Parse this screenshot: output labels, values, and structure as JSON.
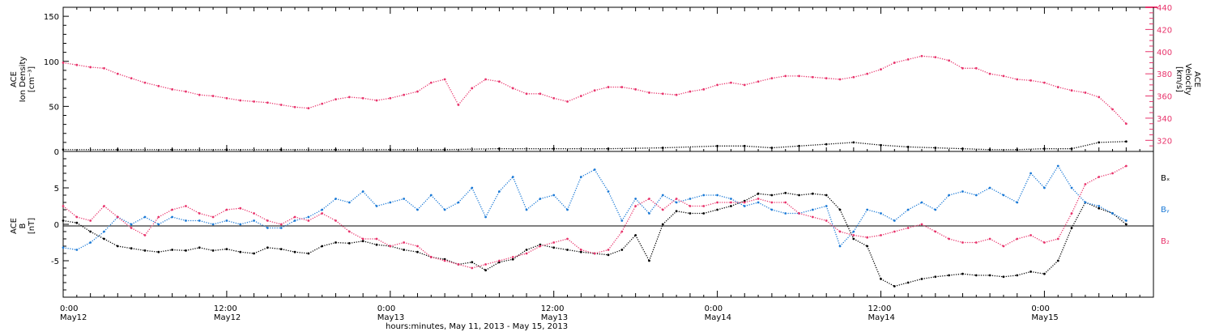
{
  "chart_data": [
    {
      "type": "scatter",
      "panel": "top",
      "ylabel_lines": [
        "ACE",
        "Ion Density",
        "[cm⁻³]"
      ],
      "right_ylabel_lines": [
        "ACE",
        "Velocity",
        "[km/s]"
      ],
      "ylim": [
        0,
        160
      ],
      "yticks": [
        0,
        50,
        100,
        150
      ],
      "ylim_right": [
        310,
        440
      ],
      "yticks_right": [
        320,
        340,
        360,
        380,
        400,
        420,
        440
      ],
      "xlim_hours": [
        0,
        80
      ],
      "series": [
        {
          "axis": "right",
          "color": "#e8336b",
          "x": [
            0,
            1,
            2,
            3,
            4,
            5,
            6,
            7,
            8,
            9,
            10,
            11,
            12,
            13,
            14,
            15,
            16,
            17,
            18,
            19,
            20,
            21,
            22,
            23,
            24,
            25,
            26,
            27,
            28,
            29,
            30,
            31,
            32,
            33,
            34,
            35,
            36,
            37,
            38,
            39,
            40,
            41,
            42,
            43,
            44,
            45,
            46,
            47,
            48,
            49,
            50,
            51,
            52,
            53,
            54,
            55,
            56,
            57,
            58,
            59,
            60,
            61,
            62,
            63,
            64,
            65,
            66,
            67,
            68,
            69,
            70,
            71,
            72,
            73,
            74,
            75,
            76,
            77,
            78
          ],
          "y": [
            390,
            388,
            386,
            385,
            380,
            376,
            372,
            369,
            366,
            364,
            361,
            360,
            358,
            356,
            355,
            354,
            352,
            350,
            349,
            353,
            357,
            359,
            358,
            356,
            358,
            361,
            364,
            372,
            375,
            352,
            367,
            375,
            373,
            367,
            362,
            362,
            358,
            355,
            360,
            365,
            368,
            368,
            366,
            363,
            362,
            361,
            364,
            366,
            370,
            372,
            370,
            373,
            376,
            378,
            378,
            377,
            376,
            375,
            377,
            380,
            384,
            390,
            393,
            396,
            395,
            392,
            385,
            385,
            380,
            378,
            375,
            374,
            372,
            368,
            365,
            363,
            359,
            348,
            335
          ]
        },
        {
          "axis": "left",
          "color": "#000000",
          "x": [
            0,
            4,
            8,
            12,
            16,
            20,
            24,
            28,
            32,
            36,
            40,
            44,
            48,
            50,
            52,
            54,
            56,
            58,
            60,
            62,
            64,
            66,
            68,
            70,
            72,
            74,
            76,
            78
          ],
          "y": [
            2,
            2,
            2,
            2,
            2,
            2,
            2,
            2,
            3,
            3,
            3,
            4,
            6,
            6,
            4,
            6,
            8,
            10,
            7,
            5,
            4,
            3,
            2,
            2,
            3,
            3,
            10,
            11
          ]
        }
      ]
    },
    {
      "type": "scatter",
      "panel": "bottom",
      "ylabel_lines": [
        "ACE",
        "B",
        "[nT]"
      ],
      "ylim": [
        -10,
        10
      ],
      "yticks": [
        -5,
        0,
        5
      ],
      "zero_line": true,
      "xlim_hours": [
        0,
        80
      ],
      "legend": [
        "Bₓ",
        "Bᵧ",
        "B₂"
      ],
      "series": [
        {
          "name": "Bₓ",
          "color": "#000000",
          "x": [
            0,
            1,
            2,
            3,
            4,
            5,
            6,
            7,
            8,
            9,
            10,
            11,
            12,
            13,
            14,
            15,
            16,
            17,
            18,
            19,
            20,
            21,
            22,
            23,
            24,
            25,
            26,
            27,
            28,
            29,
            30,
            31,
            32,
            33,
            34,
            35,
            36,
            37,
            38,
            39,
            40,
            41,
            42,
            43,
            44,
            45,
            46,
            47,
            48,
            49,
            50,
            51,
            52,
            53,
            54,
            55,
            56,
            57,
            58,
            59,
            60,
            61,
            62,
            63,
            64,
            65,
            66,
            67,
            68,
            69,
            70,
            71,
            72,
            73,
            74,
            75,
            76,
            77,
            78
          ],
          "y": [
            0.5,
            0.2,
            -1.0,
            -2.0,
            -3.0,
            -3.3,
            -3.6,
            -3.8,
            -3.5,
            -3.6,
            -3.2,
            -3.6,
            -3.4,
            -3.8,
            -4.0,
            -3.2,
            -3.4,
            -3.8,
            -4.0,
            -3.0,
            -2.5,
            -2.6,
            -2.3,
            -2.8,
            -3.0,
            -3.5,
            -3.8,
            -4.5,
            -4.8,
            -5.5,
            -5.2,
            -6.3,
            -5.2,
            -4.8,
            -3.5,
            -2.8,
            -3.2,
            -3.5,
            -3.8,
            -4.0,
            -4.2,
            -3.5,
            -1.5,
            -5.0,
            0.0,
            1.8,
            1.5,
            1.5,
            2.0,
            2.5,
            3.2,
            4.2,
            4.0,
            4.3,
            4.0,
            4.2,
            4.0,
            2.0,
            -2.0,
            -3.0,
            -7.5,
            -8.5,
            -8.0,
            -7.5,
            -7.2,
            -7.0,
            -6.8,
            -7.0,
            -7.0,
            -7.2,
            -7.0,
            -6.5,
            -6.8,
            -5.0,
            -0.5,
            3.0,
            2.2,
            1.5,
            0.0
          ]
        },
        {
          "name": "Bᵧ",
          "color": "#1a79d6",
          "x": [
            0,
            1,
            2,
            3,
            4,
            5,
            6,
            7,
            8,
            9,
            10,
            11,
            12,
            13,
            14,
            15,
            16,
            17,
            18,
            19,
            20,
            21,
            22,
            23,
            24,
            25,
            26,
            27,
            28,
            29,
            30,
            31,
            32,
            33,
            34,
            35,
            36,
            37,
            38,
            39,
            40,
            41,
            42,
            43,
            44,
            45,
            46,
            47,
            48,
            49,
            50,
            51,
            52,
            53,
            54,
            55,
            56,
            57,
            58,
            59,
            60,
            61,
            62,
            63,
            64,
            65,
            66,
            67,
            68,
            69,
            70,
            71,
            72,
            73,
            74,
            75,
            76,
            77,
            78
          ],
          "y": [
            -3.2,
            -3.5,
            -2.5,
            -1.0,
            1.0,
            0.0,
            1.0,
            0.0,
            1.0,
            0.5,
            0.5,
            0.0,
            0.5,
            0.0,
            0.5,
            -0.5,
            -0.5,
            0.5,
            1.0,
            2.0,
            3.5,
            3.0,
            4.5,
            2.5,
            3.0,
            3.5,
            2.0,
            4.0,
            2.0,
            3.0,
            5.0,
            1.0,
            4.5,
            6.5,
            2.0,
            3.5,
            4.0,
            2.0,
            6.5,
            7.5,
            4.5,
            0.5,
            3.5,
            1.5,
            4.0,
            3.0,
            3.5,
            4.0,
            4.0,
            3.5,
            2.5,
            3.0,
            2.0,
            1.5,
            1.5,
            2.0,
            2.5,
            -3.0,
            -1.0,
            2.0,
            1.5,
            0.5,
            2.0,
            3.0,
            2.0,
            4.0,
            4.5,
            4.0,
            5.0,
            4.0,
            3.0,
            7.0,
            5.0,
            8.0,
            5.0,
            3.0,
            2.5,
            1.5,
            0.5
          ]
        },
        {
          "name": "B₂",
          "color": "#e8336b",
          "x": [
            0,
            1,
            2,
            3,
            4,
            5,
            6,
            7,
            8,
            9,
            10,
            11,
            12,
            13,
            14,
            15,
            16,
            17,
            18,
            19,
            20,
            21,
            22,
            23,
            24,
            25,
            26,
            27,
            28,
            29,
            30,
            31,
            32,
            33,
            34,
            35,
            36,
            37,
            38,
            39,
            40,
            41,
            42,
            43,
            44,
            45,
            46,
            47,
            48,
            49,
            50,
            51,
            52,
            53,
            54,
            55,
            56,
            57,
            58,
            59,
            60,
            61,
            62,
            63,
            64,
            65,
            66,
            67,
            68,
            69,
            70,
            71,
            72,
            73,
            74,
            75,
            76,
            77,
            78
          ],
          "y": [
            2.5,
            1.0,
            0.5,
            2.5,
            1.0,
            -0.5,
            -1.5,
            1.0,
            2.0,
            2.5,
            1.5,
            1.0,
            2.0,
            2.2,
            1.5,
            0.5,
            0.0,
            1.0,
            0.5,
            1.5,
            0.5,
            -1.0,
            -2.0,
            -2.0,
            -3.0,
            -2.5,
            -3.0,
            -4.5,
            -5.0,
            -5.5,
            -6.0,
            -5.5,
            -5.0,
            -4.5,
            -4.0,
            -3.0,
            -2.5,
            -2.0,
            -3.5,
            -4.0,
            -3.5,
            -1.0,
            2.5,
            3.5,
            2.0,
            3.5,
            2.5,
            2.5,
            3.0,
            3.0,
            3.0,
            3.5,
            3.0,
            3.0,
            1.5,
            1.0,
            0.5,
            -1.0,
            -1.5,
            -1.8,
            -1.5,
            -1.0,
            -0.5,
            0.0,
            -1.0,
            -2.0,
            -2.5,
            -2.5,
            -2.0,
            -3.0,
            -2.0,
            -1.5,
            -2.5,
            -2.0,
            1.5,
            5.5,
            6.5,
            7.0,
            8.0
          ]
        }
      ]
    }
  ],
  "x_axis": {
    "major_ticks": [
      {
        "h": 0,
        "time": "0:00",
        "date": "May12"
      },
      {
        "h": 12,
        "time": "12:00",
        "date": "May12"
      },
      {
        "h": 24,
        "time": "0:00",
        "date": "May13"
      },
      {
        "h": 36,
        "time": "12:00",
        "date": "May13"
      },
      {
        "h": 48,
        "time": "0:00",
        "date": "May14"
      },
      {
        "h": 60,
        "time": "12:00",
        "date": "May14"
      },
      {
        "h": 72,
        "time": "0:00",
        "date": "May15"
      }
    ],
    "title": "hours:minutes, May 11, 2013 - May 15, 2013"
  }
}
